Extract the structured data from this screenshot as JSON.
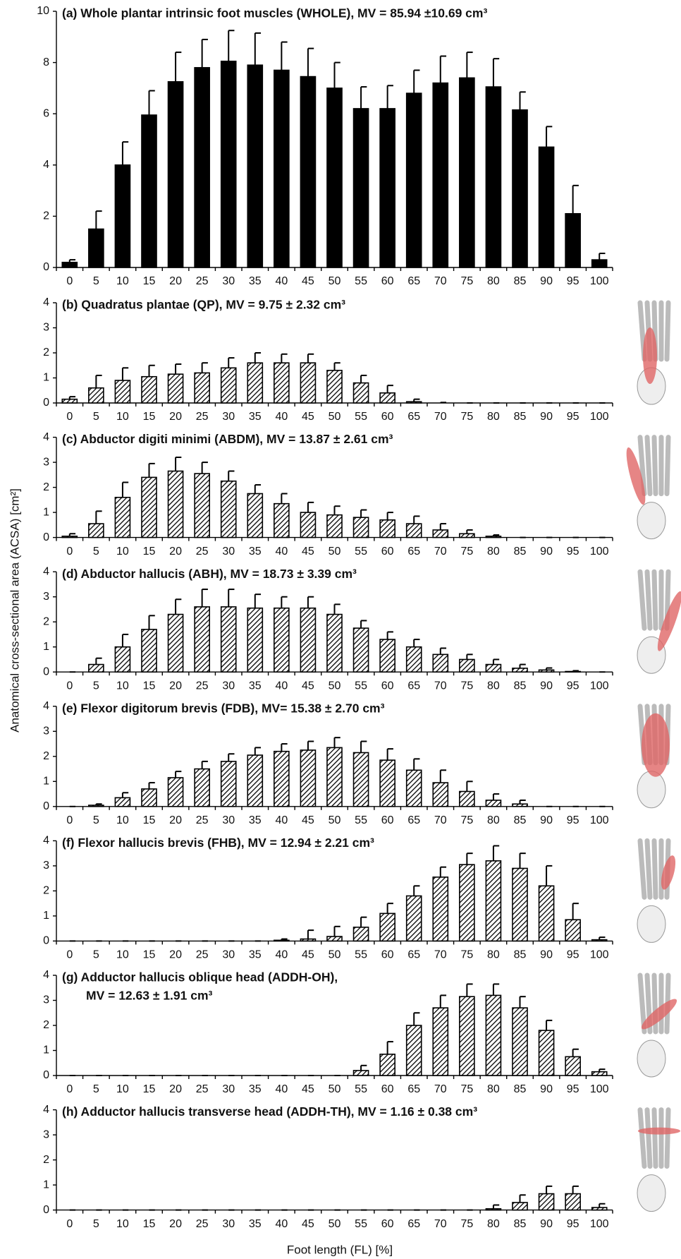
{
  "y_label": "Anatomical cross-sectional area (ACSA) [cm²]",
  "x_label": "Foot length (FL) [%]",
  "chart_data": [
    {
      "type": "bar",
      "title": "(a) Whole plantar intrinsic foot muscles (WHOLE), MV = 85.94 ±10.69 cm³",
      "fill": "solid",
      "color": "#000000",
      "categories": [
        "0",
        "5",
        "10",
        "15",
        "20",
        "25",
        "30",
        "35",
        "40",
        "45",
        "50",
        "55",
        "60",
        "65",
        "70",
        "75",
        "80",
        "85",
        "90",
        "95",
        "100"
      ],
      "values": [
        0.2,
        1.5,
        4.0,
        5.95,
        7.25,
        7.8,
        8.05,
        7.9,
        7.7,
        7.45,
        7.0,
        6.2,
        6.2,
        6.8,
        7.2,
        7.4,
        7.05,
        6.15,
        4.7,
        2.1,
        0.3
      ],
      "errors": [
        0.1,
        0.7,
        0.9,
        0.95,
        1.15,
        1.1,
        1.2,
        1.25,
        1.1,
        1.1,
        1.0,
        0.85,
        0.9,
        0.9,
        1.05,
        1.0,
        1.1,
        0.7,
        0.8,
        1.1,
        0.25
      ],
      "ylim": [
        0,
        10
      ],
      "yticks": [
        0,
        2,
        4,
        6,
        8,
        10
      ]
    },
    {
      "type": "bar",
      "title": "(b) Quadratus plantae (QP), MV = 9.75 ± 2.32 cm³",
      "fill": "hatch",
      "color": "#000000",
      "categories": [
        "0",
        "5",
        "10",
        "15",
        "20",
        "25",
        "30",
        "35",
        "40",
        "45",
        "50",
        "55",
        "60",
        "65",
        "70",
        "75",
        "80",
        "85",
        "90",
        "95",
        "100"
      ],
      "values": [
        0.15,
        0.6,
        0.9,
        1.05,
        1.15,
        1.2,
        1.4,
        1.6,
        1.6,
        1.6,
        1.3,
        0.8,
        0.4,
        0.05,
        0,
        0,
        0,
        0,
        0,
        0,
        0
      ],
      "errors": [
        0.1,
        0.5,
        0.5,
        0.45,
        0.4,
        0.4,
        0.4,
        0.4,
        0.35,
        0.35,
        0.3,
        0.3,
        0.3,
        0.1,
        0.02,
        0,
        0,
        0,
        0,
        0,
        0
      ],
      "ylim": [
        0,
        4
      ],
      "yticks": [
        0,
        1,
        2,
        3,
        4
      ]
    },
    {
      "type": "bar",
      "title": "(c) Abductor digiti minimi (ABDM), MV = 13.87 ± 2.61 cm³",
      "fill": "hatch",
      "color": "#000000",
      "categories": [
        "0",
        "5",
        "10",
        "15",
        "20",
        "25",
        "30",
        "35",
        "40",
        "45",
        "50",
        "55",
        "60",
        "65",
        "70",
        "75",
        "80",
        "85",
        "90",
        "95",
        "100"
      ],
      "values": [
        0.05,
        0.55,
        1.6,
        2.4,
        2.65,
        2.55,
        2.25,
        1.75,
        1.35,
        1.0,
        0.9,
        0.8,
        0.7,
        0.55,
        0.3,
        0.15,
        0.05,
        0,
        0,
        0,
        0
      ],
      "errors": [
        0.1,
        0.5,
        0.6,
        0.55,
        0.55,
        0.45,
        0.4,
        0.35,
        0.4,
        0.4,
        0.35,
        0.3,
        0.3,
        0.3,
        0.25,
        0.15,
        0.05,
        0,
        0,
        0,
        0
      ],
      "ylim": [
        0,
        4
      ],
      "yticks": [
        0,
        1,
        2,
        3,
        4
      ]
    },
    {
      "type": "bar",
      "title": "(d) Abductor hallucis (ABH), MV = 18.73 ± 3.39 cm³",
      "fill": "hatch",
      "color": "#000000",
      "categories": [
        "0",
        "5",
        "10",
        "15",
        "20",
        "25",
        "30",
        "35",
        "40",
        "45",
        "50",
        "55",
        "60",
        "65",
        "70",
        "75",
        "80",
        "85",
        "90",
        "95",
        "100"
      ],
      "values": [
        0,
        0.3,
        1.0,
        1.7,
        2.3,
        2.6,
        2.6,
        2.55,
        2.55,
        2.55,
        2.3,
        1.75,
        1.3,
        1.0,
        0.7,
        0.5,
        0.3,
        0.15,
        0.08,
        0.02,
        0
      ],
      "errors": [
        0,
        0.25,
        0.5,
        0.55,
        0.6,
        0.7,
        0.7,
        0.55,
        0.45,
        0.45,
        0.4,
        0.3,
        0.3,
        0.3,
        0.25,
        0.2,
        0.2,
        0.15,
        0.08,
        0.03,
        0
      ],
      "ylim": [
        0,
        4
      ],
      "yticks": [
        0,
        1,
        2,
        3,
        4
      ]
    },
    {
      "type": "bar",
      "title": "(e) Flexor digitorum brevis (FDB), MV= 15.38 ± 2.70 cm³",
      "fill": "hatch",
      "color": "#000000",
      "categories": [
        "0",
        "5",
        "10",
        "15",
        "20",
        "25",
        "30",
        "35",
        "40",
        "45",
        "50",
        "55",
        "60",
        "65",
        "70",
        "75",
        "80",
        "85",
        "90",
        "95",
        "100"
      ],
      "values": [
        0,
        0.05,
        0.35,
        0.7,
        1.15,
        1.5,
        1.8,
        2.05,
        2.2,
        2.25,
        2.35,
        2.15,
        1.85,
        1.45,
        0.95,
        0.6,
        0.25,
        0.1,
        0,
        0,
        0
      ],
      "errors": [
        0,
        0.05,
        0.2,
        0.25,
        0.25,
        0.3,
        0.3,
        0.3,
        0.3,
        0.35,
        0.4,
        0.45,
        0.45,
        0.45,
        0.5,
        0.4,
        0.25,
        0.15,
        0,
        0,
        0
      ],
      "ylim": [
        0,
        4
      ],
      "yticks": [
        0,
        1,
        2,
        3,
        4
      ]
    },
    {
      "type": "bar",
      "title": "(f) Flexor hallucis brevis (FHB), MV = 12.94 ± 2.21 cm³",
      "fill": "hatch",
      "color": "#000000",
      "categories": [
        "0",
        "5",
        "10",
        "15",
        "20",
        "25",
        "30",
        "35",
        "40",
        "45",
        "50",
        "55",
        "60",
        "65",
        "70",
        "75",
        "80",
        "85",
        "90",
        "95",
        "100"
      ],
      "values": [
        0,
        0,
        0,
        0,
        0,
        0,
        0,
        0,
        0.03,
        0.08,
        0.18,
        0.55,
        1.1,
        1.8,
        2.55,
        3.05,
        3.2,
        2.9,
        2.2,
        0.85,
        0.05
      ],
      "errors": [
        0,
        0,
        0,
        0,
        0,
        0,
        0,
        0,
        0.05,
        0.35,
        0.4,
        0.4,
        0.4,
        0.4,
        0.4,
        0.45,
        0.6,
        0.6,
        0.8,
        0.65,
        0.1
      ],
      "ylim": [
        0,
        4
      ],
      "yticks": [
        0,
        1,
        2,
        3,
        4
      ]
    },
    {
      "type": "bar",
      "title": "(g) Adductor hallucis oblique head (ADDH-OH),",
      "subtitle": "MV = 12.63 ± 1.91 cm³",
      "fill": "hatch",
      "color": "#000000",
      "categories": [
        "0",
        "5",
        "10",
        "15",
        "20",
        "25",
        "30",
        "35",
        "40",
        "45",
        "50",
        "55",
        "60",
        "65",
        "70",
        "75",
        "80",
        "85",
        "90",
        "95",
        "100"
      ],
      "values": [
        0,
        0,
        0,
        0,
        0,
        0,
        0,
        0,
        0,
        0,
        0,
        0.2,
        0.85,
        2.0,
        2.7,
        3.15,
        3.2,
        2.7,
        1.8,
        0.75,
        0.15
      ],
      "errors": [
        0,
        0,
        0,
        0,
        0,
        0,
        0,
        0,
        0,
        0,
        0,
        0.2,
        0.5,
        0.5,
        0.5,
        0.5,
        0.45,
        0.45,
        0.4,
        0.3,
        0.1
      ],
      "ylim": [
        0,
        4
      ],
      "yticks": [
        0,
        1,
        2,
        3,
        4
      ]
    },
    {
      "type": "bar",
      "title": "(h) Adductor hallucis transverse head (ADDH-TH), MV = 1.16 ± 0.38 cm³",
      "fill": "hatch",
      "color": "#000000",
      "categories": [
        "0",
        "5",
        "10",
        "15",
        "20",
        "25",
        "30",
        "35",
        "40",
        "45",
        "50",
        "55",
        "60",
        "65",
        "70",
        "75",
        "80",
        "85",
        "90",
        "95",
        "100"
      ],
      "values": [
        0,
        0,
        0,
        0,
        0,
        0,
        0,
        0,
        0,
        0,
        0,
        0,
        0,
        0,
        0,
        0,
        0.05,
        0.3,
        0.65,
        0.65,
        0.1
      ],
      "errors": [
        0,
        0,
        0,
        0,
        0,
        0,
        0,
        0,
        0,
        0,
        0,
        0,
        0,
        0,
        0,
        0,
        0.15,
        0.3,
        0.3,
        0.3,
        0.15
      ],
      "ylim": [
        0,
        4
      ],
      "yticks": [
        0,
        1,
        2,
        3,
        4
      ]
    }
  ]
}
